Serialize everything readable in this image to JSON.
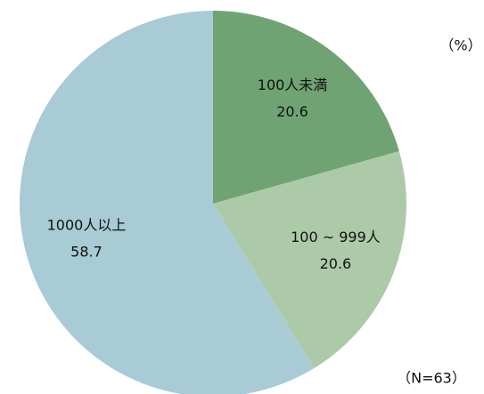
{
  "chart_data": {
    "type": "pie",
    "unit_label": "（%）",
    "note": "（N=63）",
    "categories": [
      "100人未満",
      "100 ~ 999人",
      "1000人以上"
    ],
    "values": [
      20.6,
      20.6,
      58.7
    ],
    "colors": [
      "#70a373",
      "#adcaa8",
      "#a8cbd6"
    ]
  }
}
